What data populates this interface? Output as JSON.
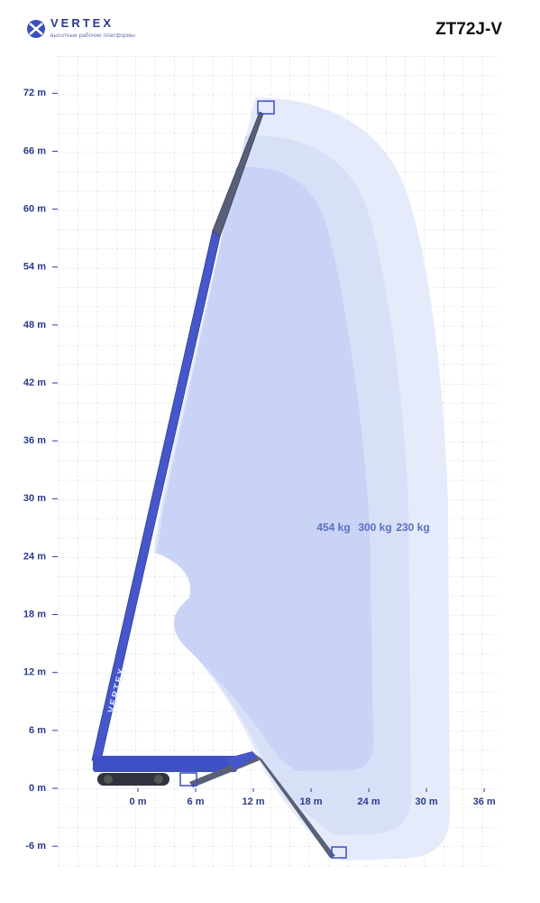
{
  "header": {
    "logo": "VERTEX",
    "tagline": "высотные рабочие платформы",
    "model": "ZT72J-V"
  },
  "axes": {
    "y": {
      "ticks": [
        {
          "value": 72,
          "label": "72 m"
        },
        {
          "value": 66,
          "label": "66 m"
        },
        {
          "value": 60,
          "label": "60 m"
        },
        {
          "value": 54,
          "label": "54 m"
        },
        {
          "value": 48,
          "label": "48 m"
        },
        {
          "value": 42,
          "label": "42 m"
        },
        {
          "value": 36,
          "label": "36 m"
        },
        {
          "value": 30,
          "label": "30 m"
        },
        {
          "value": 24,
          "label": "24 m"
        },
        {
          "value": 18,
          "label": "18 m"
        },
        {
          "value": 12,
          "label": "12 m"
        },
        {
          "value": 6,
          "label": "6 m"
        },
        {
          "value": 0,
          "label": "0 m"
        },
        {
          "value": -6,
          "label": "-6 m"
        }
      ]
    },
    "x": {
      "ticks": [
        {
          "value": 0,
          "label": "0 m"
        },
        {
          "value": 6,
          "label": "6 m"
        },
        {
          "value": 12,
          "label": "12 m"
        },
        {
          "value": 18,
          "label": "18 m"
        },
        {
          "value": 24,
          "label": "24 m"
        },
        {
          "value": 30,
          "label": "30 m"
        },
        {
          "value": 36,
          "label": "36 m"
        }
      ]
    }
  },
  "load_zones": [
    "454 kg",
    "300 kg",
    "230 kg"
  ],
  "boom_label": "VERTEX"
}
